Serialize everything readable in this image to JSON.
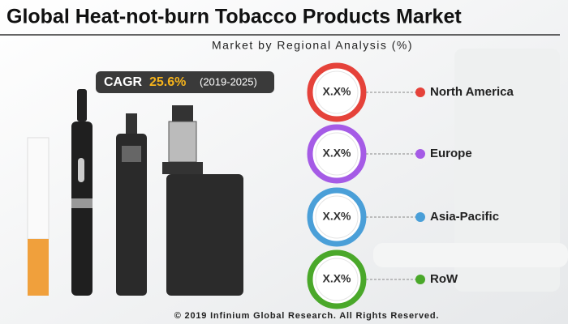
{
  "header": {
    "title": "Global Heat-not-burn Tobacco Products Market",
    "subtitle": "Market by Regional Analysis (%)"
  },
  "cagr": {
    "label": "CAGR",
    "value": "25.6%",
    "period": "(2019-2025)"
  },
  "regions": [
    {
      "value": "X.X%",
      "name": "North America",
      "color": "#e5423a"
    },
    {
      "value": "X.X%",
      "name": "Europe",
      "color": "#a55be6"
    },
    {
      "value": "X.X%",
      "name": "Asia-Pacific",
      "color": "#4a9fd8"
    },
    {
      "value": "X.X%",
      "name": "RoW",
      "color": "#4aa82a"
    }
  ],
  "footer": "© 2019 Infinium Global Research. All Rights Reserved."
}
